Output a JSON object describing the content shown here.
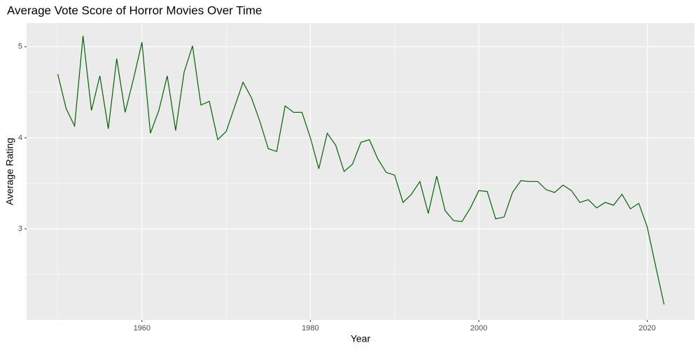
{
  "chart_data": {
    "type": "line",
    "title": "Average Vote Score of Horror Movies Over Time",
    "x_label": "Year",
    "y_label": "Average Rating",
    "x": [
      1950,
      1951,
      1952,
      1953,
      1954,
      1955,
      1956,
      1957,
      1958,
      1959,
      1960,
      1961,
      1962,
      1963,
      1964,
      1965,
      1966,
      1967,
      1968,
      1969,
      1970,
      1971,
      1972,
      1973,
      1974,
      1975,
      1976,
      1977,
      1978,
      1979,
      1980,
      1981,
      1982,
      1983,
      1984,
      1985,
      1986,
      1987,
      1988,
      1989,
      1990,
      1991,
      1992,
      1993,
      1994,
      1995,
      1996,
      1997,
      1998,
      1999,
      2000,
      2001,
      2002,
      2003,
      2004,
      2005,
      2006,
      2007,
      2008,
      2009,
      2010,
      2011,
      2012,
      2013,
      2014,
      2015,
      2016,
      2017,
      2018,
      2019,
      2020,
      2021,
      2022
    ],
    "series": [
      {
        "name": "Average Rating",
        "color": "#006400",
        "values": [
          4.7,
          4.32,
          4.13,
          5.12,
          4.3,
          4.68,
          4.1,
          4.87,
          4.28,
          4.65,
          5.05,
          4.05,
          4.3,
          4.68,
          4.08,
          4.72,
          5.01,
          4.36,
          4.4,
          3.98,
          4.07,
          4.34,
          4.61,
          4.44,
          4.18,
          3.88,
          3.85,
          4.35,
          4.28,
          4.28,
          4.0,
          3.66,
          4.05,
          3.92,
          3.63,
          3.71,
          3.95,
          3.98,
          3.77,
          3.62,
          3.59,
          3.29,
          3.38,
          3.52,
          3.17,
          3.58,
          3.2,
          3.09,
          3.08,
          3.23,
          3.42,
          3.41,
          3.11,
          3.13,
          3.4,
          3.53,
          3.52,
          3.52,
          3.43,
          3.4,
          3.48,
          3.42,
          3.29,
          3.32,
          3.23,
          3.29,
          3.26,
          3.38,
          3.22,
          3.28,
          3.02,
          2.59,
          2.17
        ]
      }
    ],
    "xlim": [
      1946.3,
      2025.6
    ],
    "xticks": [
      1960,
      1980,
      2000,
      2020
    ],
    "ylim": [
      2.0,
      5.26
    ],
    "yticks": [
      3,
      4,
      5
    ],
    "grid": true
  }
}
